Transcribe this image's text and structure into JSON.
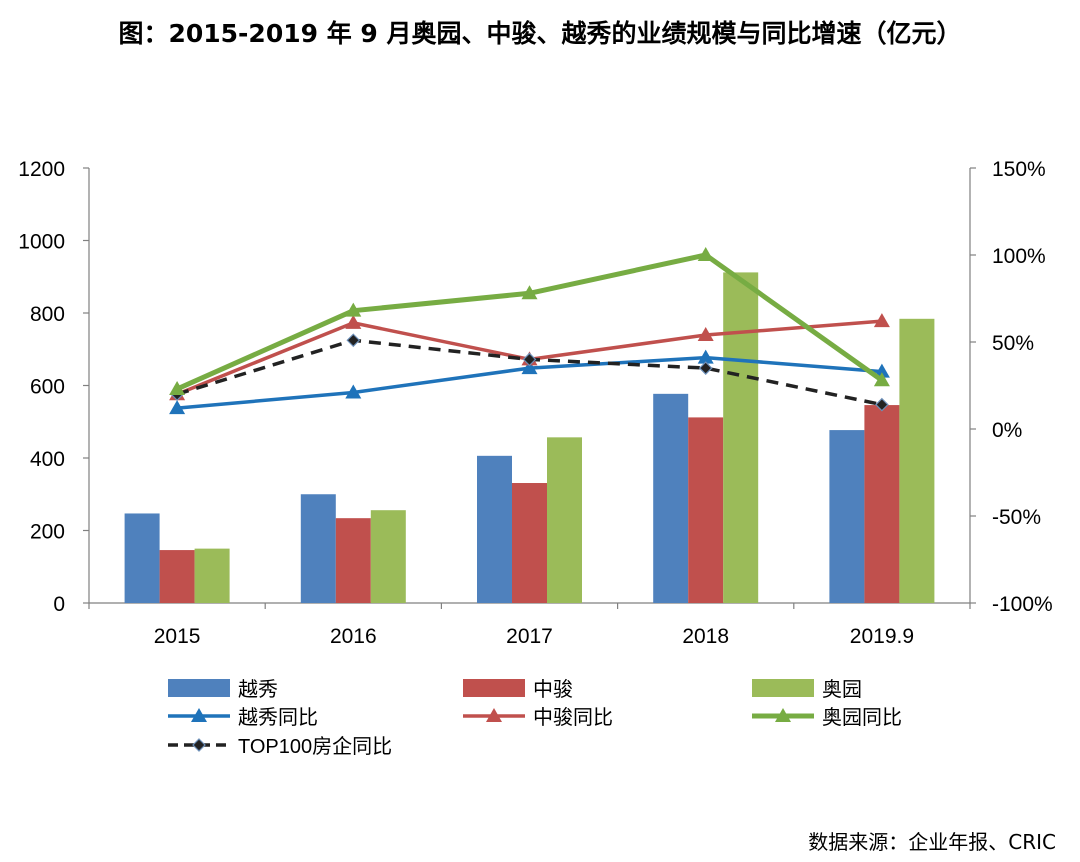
{
  "title": "图：2015-2019 年 9 月奥园、中骏、越秀的业绩规模与同比增速（亿元）",
  "source": "数据来源：企业年报、CRIC",
  "chart_data": {
    "type": "bar",
    "categories": [
      "2015",
      "2016",
      "2017",
      "2018",
      "2019.9"
    ],
    "bar_series": [
      {
        "name": "越秀",
        "color": "#4F81BD",
        "values": [
          247,
          300,
          406,
          577,
          477
        ]
      },
      {
        "name": "中骏",
        "color": "#C0504D",
        "values": [
          146,
          234,
          331,
          512,
          546
        ]
      },
      {
        "name": "奥园",
        "color": "#9BBB59",
        "values": [
          150,
          256,
          457,
          912,
          784
        ]
      }
    ],
    "line_series": [
      {
        "name": "越秀同比",
        "color": "#1F73BA",
        "marker": "triangle",
        "style": "solid",
        "values": [
          0.12,
          0.21,
          0.35,
          0.41,
          0.33
        ]
      },
      {
        "name": "中骏同比",
        "color": "#C0504D",
        "marker": "triangle",
        "style": "solid",
        "values": [
          0.2,
          0.61,
          0.4,
          0.54,
          0.62
        ]
      },
      {
        "name": "奥园同比",
        "color": "#77AC43",
        "marker": "triangle",
        "style": "solid",
        "values": [
          0.23,
          0.68,
          0.78,
          1.0,
          0.28
        ]
      },
      {
        "name": "TOP100房企同比",
        "color": "#222222",
        "marker": "diamond",
        "style": "dashed",
        "values": [
          0.2,
          0.51,
          0.4,
          0.35,
          0.14
        ]
      }
    ],
    "y_left": {
      "lim": [
        0,
        1200
      ],
      "ticks": [
        0,
        200,
        400,
        600,
        800,
        1000,
        1200
      ]
    },
    "y_right": {
      "lim": [
        -1.0,
        1.5
      ],
      "ticks": [
        -1.0,
        -0.5,
        0,
        0.5,
        1.0,
        1.5
      ],
      "tick_labels": [
        "-100%",
        "-50%",
        "0%",
        "50%",
        "100%",
        "150%"
      ]
    },
    "legend_position": "bottom",
    "grid": false
  }
}
